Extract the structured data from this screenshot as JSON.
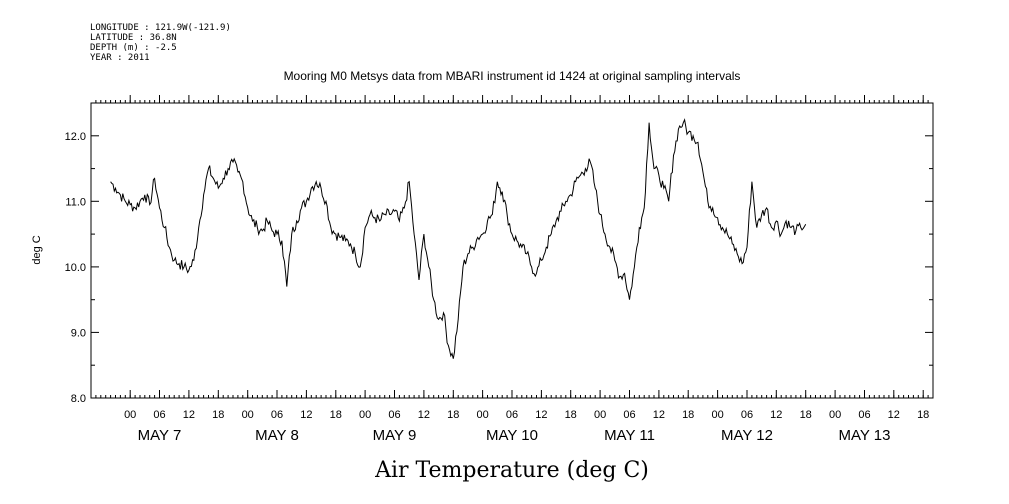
{
  "metadata": {
    "longitude": "LONGITUDE : 121.9W(-121.9)",
    "latitude": "LATITUDE : 36.8N",
    "depth": "DEPTH (m) : -2.5",
    "year": "YEAR : 2011"
  },
  "chart_data": {
    "type": "line",
    "title": "Mooring M0 Metsys data from MBARI instrument id 1424 at original sampling intervals",
    "xlabel": "Air Temperature (deg C)",
    "ylabel": "deg C",
    "ylim": [
      8.0,
      12.5
    ],
    "xlim_hours": [
      -8,
      140
    ],
    "y_ticks": [
      "8.0",
      "9.0",
      "10.0",
      "11.0",
      "12.0"
    ],
    "y_tick_values": [
      8.0,
      9.0,
      10.0,
      11.0,
      12.0
    ],
    "hour_ticks": [
      "00",
      "06",
      "12",
      "18",
      "00",
      "06",
      "12",
      "18",
      "00",
      "06",
      "12",
      "18",
      "00",
      "06",
      "12",
      "18",
      "00",
      "06",
      "12",
      "18",
      "00",
      "06",
      "12",
      "18",
      "00",
      "06",
      "12",
      "18"
    ],
    "hour_tick_positions": [
      0,
      6,
      12,
      18,
      24,
      30,
      36,
      42,
      48,
      54,
      60,
      66,
      72,
      78,
      84,
      90,
      96,
      102,
      108,
      114,
      120,
      126,
      132,
      138,
      144,
      150,
      156,
      162
    ],
    "day_labels": [
      "MAY  7",
      "MAY  8",
      "MAY  9",
      "MAY 10",
      "MAY 11",
      "MAY 12",
      "MAY 13"
    ],
    "day_label_positions": [
      6,
      30,
      54,
      78,
      102,
      126,
      150
    ],
    "series": [
      {
        "x": [
          -4,
          -3,
          -2,
          -1,
          0,
          1,
          2,
          3,
          4,
          5,
          6,
          7,
          8,
          9,
          10,
          11,
          12,
          13,
          14,
          15,
          16,
          17,
          18,
          19,
          20,
          21,
          22,
          23,
          24,
          25,
          26,
          27,
          28,
          29,
          30,
          31,
          32,
          33,
          34,
          35,
          36,
          37,
          38,
          39,
          40,
          41,
          42,
          43,
          44,
          45,
          46,
          47,
          48,
          49,
          50,
          51,
          52,
          53,
          54,
          55,
          56,
          57,
          58,
          59,
          60,
          61,
          62,
          63,
          64,
          65,
          66,
          67,
          68,
          69,
          70,
          71,
          72,
          73,
          74,
          75,
          76,
          77,
          78,
          79,
          80,
          81,
          82,
          83,
          84,
          85,
          86,
          87,
          88,
          89,
          90,
          91,
          92,
          93,
          94,
          95,
          96,
          97,
          98,
          99,
          100,
          101,
          102,
          103,
          104,
          105,
          106,
          107,
          108,
          109,
          110,
          111,
          112,
          113,
          114,
          115,
          116,
          117,
          118,
          119,
          120,
          121,
          122,
          123,
          124,
          125,
          126,
          127,
          128,
          129,
          130,
          131,
          132,
          133,
          134,
          135,
          136,
          137,
          138
        ],
        "y": [
          11.3,
          11.2,
          11.1,
          11.0,
          10.95,
          10.9,
          11.0,
          11.1,
          10.95,
          11.35,
          10.9,
          10.6,
          10.3,
          10.1,
          10.05,
          10.0,
          9.95,
          10.1,
          10.6,
          11.1,
          11.5,
          11.35,
          11.2,
          11.35,
          11.5,
          11.6,
          11.45,
          11.3,
          10.9,
          10.7,
          10.6,
          10.55,
          10.7,
          10.55,
          10.5,
          10.4,
          9.7,
          10.5,
          10.7,
          10.9,
          11.0,
          11.2,
          11.3,
          11.2,
          11.0,
          10.6,
          10.5,
          10.45,
          10.4,
          10.35,
          10.2,
          10.0,
          10.6,
          10.8,
          10.75,
          10.7,
          10.8,
          10.8,
          10.85,
          10.7,
          10.9,
          11.3,
          10.5,
          9.8,
          10.5,
          10.0,
          9.5,
          9.2,
          9.3,
          8.8,
          8.6,
          9.2,
          10.0,
          10.2,
          10.3,
          10.45,
          10.5,
          10.7,
          10.8,
          11.3,
          11.15,
          10.8,
          10.5,
          10.4,
          10.3,
          10.2,
          10.0,
          9.9,
          10.1,
          10.3,
          10.5,
          10.7,
          10.85,
          11.0,
          11.1,
          11.3,
          11.4,
          11.5,
          11.6,
          11.2,
          10.8,
          10.5,
          10.3,
          10.1,
          9.85,
          9.9,
          9.5,
          10.0,
          10.6,
          10.9,
          12.2,
          11.5,
          11.4,
          11.2,
          11.0,
          11.7,
          12.1,
          12.2,
          12.05,
          12.0,
          11.9,
          11.45,
          11.0,
          10.9,
          10.75,
          10.6,
          10.5,
          10.35,
          10.2,
          10.05,
          10.3,
          11.3,
          10.6,
          10.8,
          10.9,
          10.6,
          10.7,
          10.5,
          10.7,
          10.6,
          10.55,
          10.6,
          10.65
        ]
      }
    ]
  }
}
